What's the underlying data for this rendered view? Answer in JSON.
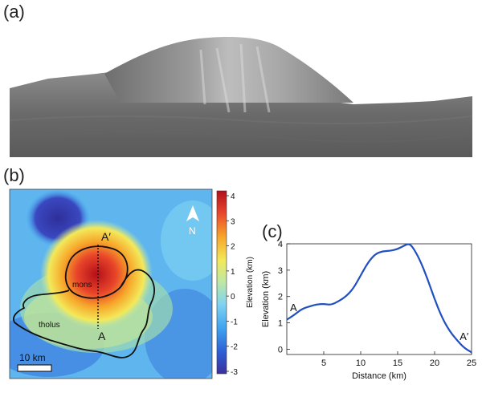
{
  "panels": {
    "a": {
      "label": "(a)"
    },
    "b": {
      "label": "(b)",
      "north_label": "N",
      "profile_start": "A",
      "profile_end": "A′",
      "region_mons": "mons",
      "region_tholus": "tholus",
      "scale_label": "10 km",
      "colorbar": {
        "title": "Elevation (km)",
        "ticks": [
          "4",
          "3",
          "2",
          "1",
          "0",
          "-1",
          "-2",
          "-3"
        ],
        "colors": [
          "#3b2f9b",
          "#2e5fd6",
          "#3fa3f0",
          "#7fd3f2",
          "#bde8a6",
          "#f3e95a",
          "#f7a52a",
          "#e8452a",
          "#b40f1a"
        ]
      },
      "icons": {
        "north": "north-arrow-icon"
      }
    },
    "c": {
      "label": "(c)"
    }
  },
  "chart_data": {
    "type": "line",
    "title": "",
    "xlabel": "Distance (km)",
    "ylabel": "Elevation (km)",
    "xlim": [
      0,
      25
    ],
    "ylim": [
      -0.2,
      4
    ],
    "xticks": [
      5,
      10,
      15,
      20,
      25
    ],
    "yticks": [
      0,
      1,
      2,
      3,
      4
    ],
    "annotations": [
      {
        "text": "A",
        "x": 0.9,
        "y": 1.45
      },
      {
        "text": "A′",
        "x": 24.0,
        "y": 0.35
      }
    ],
    "series": [
      {
        "color": "#1f4fc0",
        "x": [
          0,
          1,
          2,
          3,
          4,
          5,
          6,
          7,
          8,
          9,
          10,
          11,
          12,
          13,
          14,
          15,
          16,
          16.5,
          17,
          18,
          19,
          20,
          21,
          22,
          23,
          24,
          25
        ],
        "y": [
          1.12,
          1.3,
          1.52,
          1.62,
          1.7,
          1.72,
          1.68,
          1.82,
          2.0,
          2.3,
          2.8,
          3.3,
          3.62,
          3.72,
          3.73,
          3.8,
          3.95,
          4.0,
          3.9,
          3.4,
          2.7,
          1.9,
          1.2,
          0.7,
          0.35,
          0.05,
          -0.12
        ]
      }
    ]
  }
}
